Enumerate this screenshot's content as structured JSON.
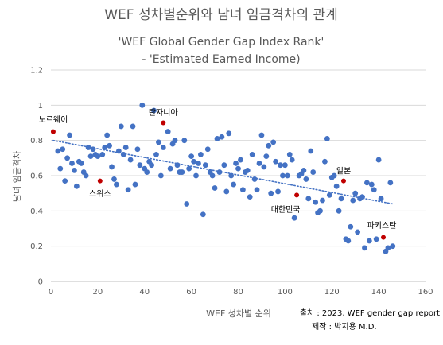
{
  "chart_data": {
    "type": "scatter",
    "title": "WEF 성차별순위와 남녀 임금격차의 관계",
    "subtitle_lines": [
      "'WEF Global Gender Gap Index Rank'",
      "- 'Estimated Earned Income)"
    ],
    "xlabel": "WEF 성차별 순위",
    "ylabel": "남녀 임금격차",
    "xlim": [
      0,
      160
    ],
    "ylim": [
      0,
      1.2
    ],
    "x_ticks": [
      0,
      20,
      40,
      60,
      80,
      100,
      120,
      140,
      160
    ],
    "y_ticks": [
      0,
      0.2,
      0.4,
      0.6,
      0.8,
      1,
      1.2
    ],
    "y_tick_labels": [
      "0",
      "0.2",
      "0.4",
      "0.6",
      "0.8",
      "1",
      "1.2"
    ],
    "grid": "horizontal",
    "legend": "none",
    "source_note": "출처 : 2023, WEF gender gap report",
    "author_note": "제작 : 박지용 M.D.",
    "colors": {
      "points": "#4472c4",
      "highlight": "#c00000",
      "trend": "#4472c4"
    },
    "trendline": {
      "style": "dotted linear",
      "x": [
        1,
        146
      ],
      "y": [
        0.8,
        0.44
      ]
    },
    "series": [
      {
        "points": [
          [
            3,
            0.74
          ],
          [
            4,
            0.64
          ],
          [
            5,
            0.75
          ],
          [
            6,
            0.57
          ],
          [
            7,
            0.7
          ],
          [
            8,
            0.83
          ],
          [
            9,
            0.67
          ],
          [
            10,
            0.63
          ],
          [
            11,
            0.54
          ],
          [
            12,
            0.68
          ],
          [
            13,
            0.67
          ],
          [
            14,
            0.62
          ],
          [
            15,
            0.6
          ],
          [
            16,
            0.76
          ],
          [
            17,
            0.71
          ],
          [
            18,
            0.75
          ],
          [
            19,
            0.72
          ],
          [
            20,
            0.71
          ],
          [
            22,
            0.72
          ],
          [
            23,
            0.76
          ],
          [
            24,
            0.83
          ],
          [
            25,
            0.77
          ],
          [
            26,
            0.65
          ],
          [
            27,
            0.58
          ],
          [
            28,
            0.55
          ],
          [
            29,
            0.74
          ],
          [
            30,
            0.88
          ],
          [
            31,
            0.72
          ],
          [
            32,
            0.76
          ],
          [
            33,
            0.52
          ],
          [
            34,
            0.69
          ],
          [
            35,
            0.88
          ],
          [
            36,
            0.55
          ],
          [
            37,
            0.75
          ],
          [
            38,
            0.66
          ],
          [
            39,
            1.0
          ],
          [
            40,
            0.64
          ],
          [
            41,
            0.62
          ],
          [
            42,
            0.68
          ],
          [
            43,
            0.66
          ],
          [
            44,
            0.97
          ],
          [
            45,
            0.72
          ],
          [
            46,
            0.79
          ],
          [
            47,
            0.6
          ],
          [
            48,
            0.76
          ],
          [
            50,
            0.85
          ],
          [
            51,
            0.64
          ],
          [
            52,
            0.78
          ],
          [
            53,
            0.8
          ],
          [
            54,
            0.66
          ],
          [
            55,
            0.62
          ],
          [
            56,
            0.62
          ],
          [
            57,
            0.8
          ],
          [
            58,
            0.44
          ],
          [
            59,
            0.64
          ],
          [
            60,
            0.71
          ],
          [
            61,
            0.68
          ],
          [
            62,
            0.6
          ],
          [
            63,
            0.67
          ],
          [
            64,
            0.72
          ],
          [
            65,
            0.38
          ],
          [
            66,
            0.66
          ],
          [
            67,
            0.75
          ],
          [
            68,
            0.62
          ],
          [
            69,
            0.6
          ],
          [
            70,
            0.53
          ],
          [
            71,
            0.81
          ],
          [
            72,
            0.62
          ],
          [
            73,
            0.82
          ],
          [
            74,
            0.66
          ],
          [
            75,
            0.51
          ],
          [
            76,
            0.84
          ],
          [
            77,
            0.6
          ],
          [
            78,
            0.55
          ],
          [
            79,
            0.67
          ],
          [
            80,
            0.64
          ],
          [
            81,
            0.69
          ],
          [
            82,
            0.52
          ],
          [
            83,
            0.62
          ],
          [
            84,
            0.63
          ],
          [
            85,
            0.48
          ],
          [
            86,
            0.72
          ],
          [
            87,
            0.58
          ],
          [
            88,
            0.52
          ],
          [
            89,
            0.67
          ],
          [
            90,
            0.83
          ],
          [
            91,
            0.65
          ],
          [
            92,
            0.71
          ],
          [
            93,
            0.77
          ],
          [
            94,
            0.5
          ],
          [
            95,
            0.79
          ],
          [
            96,
            0.68
          ],
          [
            97,
            0.51
          ],
          [
            98,
            0.66
          ],
          [
            99,
            0.6
          ],
          [
            100,
            0.66
          ],
          [
            101,
            0.6
          ],
          [
            102,
            0.72
          ],
          [
            103,
            0.69
          ],
          [
            104,
            0.36
          ],
          [
            106,
            0.6
          ],
          [
            107,
            0.61
          ],
          [
            108,
            0.63
          ],
          [
            109,
            0.58
          ],
          [
            110,
            0.47
          ],
          [
            111,
            0.74
          ],
          [
            112,
            0.62
          ],
          [
            113,
            0.45
          ],
          [
            114,
            0.39
          ],
          [
            115,
            0.4
          ],
          [
            116,
            0.46
          ],
          [
            117,
            0.68
          ],
          [
            118,
            0.81
          ],
          [
            119,
            0.49
          ],
          [
            120,
            0.59
          ],
          [
            121,
            0.6
          ],
          [
            122,
            0.54
          ],
          [
            123,
            0.4
          ],
          [
            124,
            0.47
          ],
          [
            126,
            0.24
          ],
          [
            127,
            0.23
          ],
          [
            128,
            0.31
          ],
          [
            129,
            0.46
          ],
          [
            130,
            0.5
          ],
          [
            131,
            0.28
          ],
          [
            132,
            0.47
          ],
          [
            133,
            0.48
          ],
          [
            134,
            0.19
          ],
          [
            135,
            0.56
          ],
          [
            136,
            0.23
          ],
          [
            137,
            0.55
          ],
          [
            138,
            0.52
          ],
          [
            139,
            0.24
          ],
          [
            140,
            0.69
          ],
          [
            141,
            0.47
          ],
          [
            143,
            0.17
          ],
          [
            144,
            0.19
          ],
          [
            145,
            0.56
          ],
          [
            146,
            0.2
          ]
        ]
      },
      {
        "points": [
          [
            1,
            0.85
          ],
          [
            21,
            0.57
          ],
          [
            48,
            0.9
          ],
          [
            105,
            0.49
          ],
          [
            125,
            0.57
          ],
          [
            142,
            0.25
          ]
        ],
        "labels": [
          "노르웨이",
          "스위스",
          "탄자니아",
          "대한민국",
          "일본",
          "파키스탄"
        ],
        "label_dx": [
          0,
          0,
          0,
          -14,
          0,
          -2
        ],
        "label_dy": [
          -0.07,
          0.07,
          -0.06,
          0.08,
          -0.06,
          -0.07
        ]
      }
    ]
  }
}
